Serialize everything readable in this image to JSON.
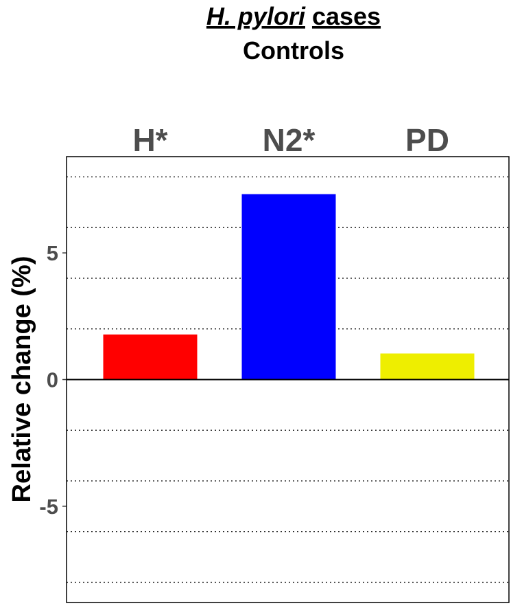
{
  "chart_data": {
    "type": "bar",
    "title_italic": "H. pylori",
    "title_rest": "cases",
    "subtitle": "Controls",
    "y_label": "Relative change (%)",
    "categories": [
      "H*",
      "N2*",
      "PD"
    ],
    "values": [
      1.78,
      7.32,
      1.03
    ],
    "colors": [
      "#ff0000",
      "#0000ff",
      "#eeee00"
    ],
    "ylim": [
      -8.8,
      8.8
    ],
    "yticks": [
      -5,
      {
        "value": 0,
        "label": "0"
      },
      5
    ],
    "grid_lines": [
      -8,
      -6,
      -4,
      -2,
      2,
      4,
      6,
      8
    ]
  }
}
